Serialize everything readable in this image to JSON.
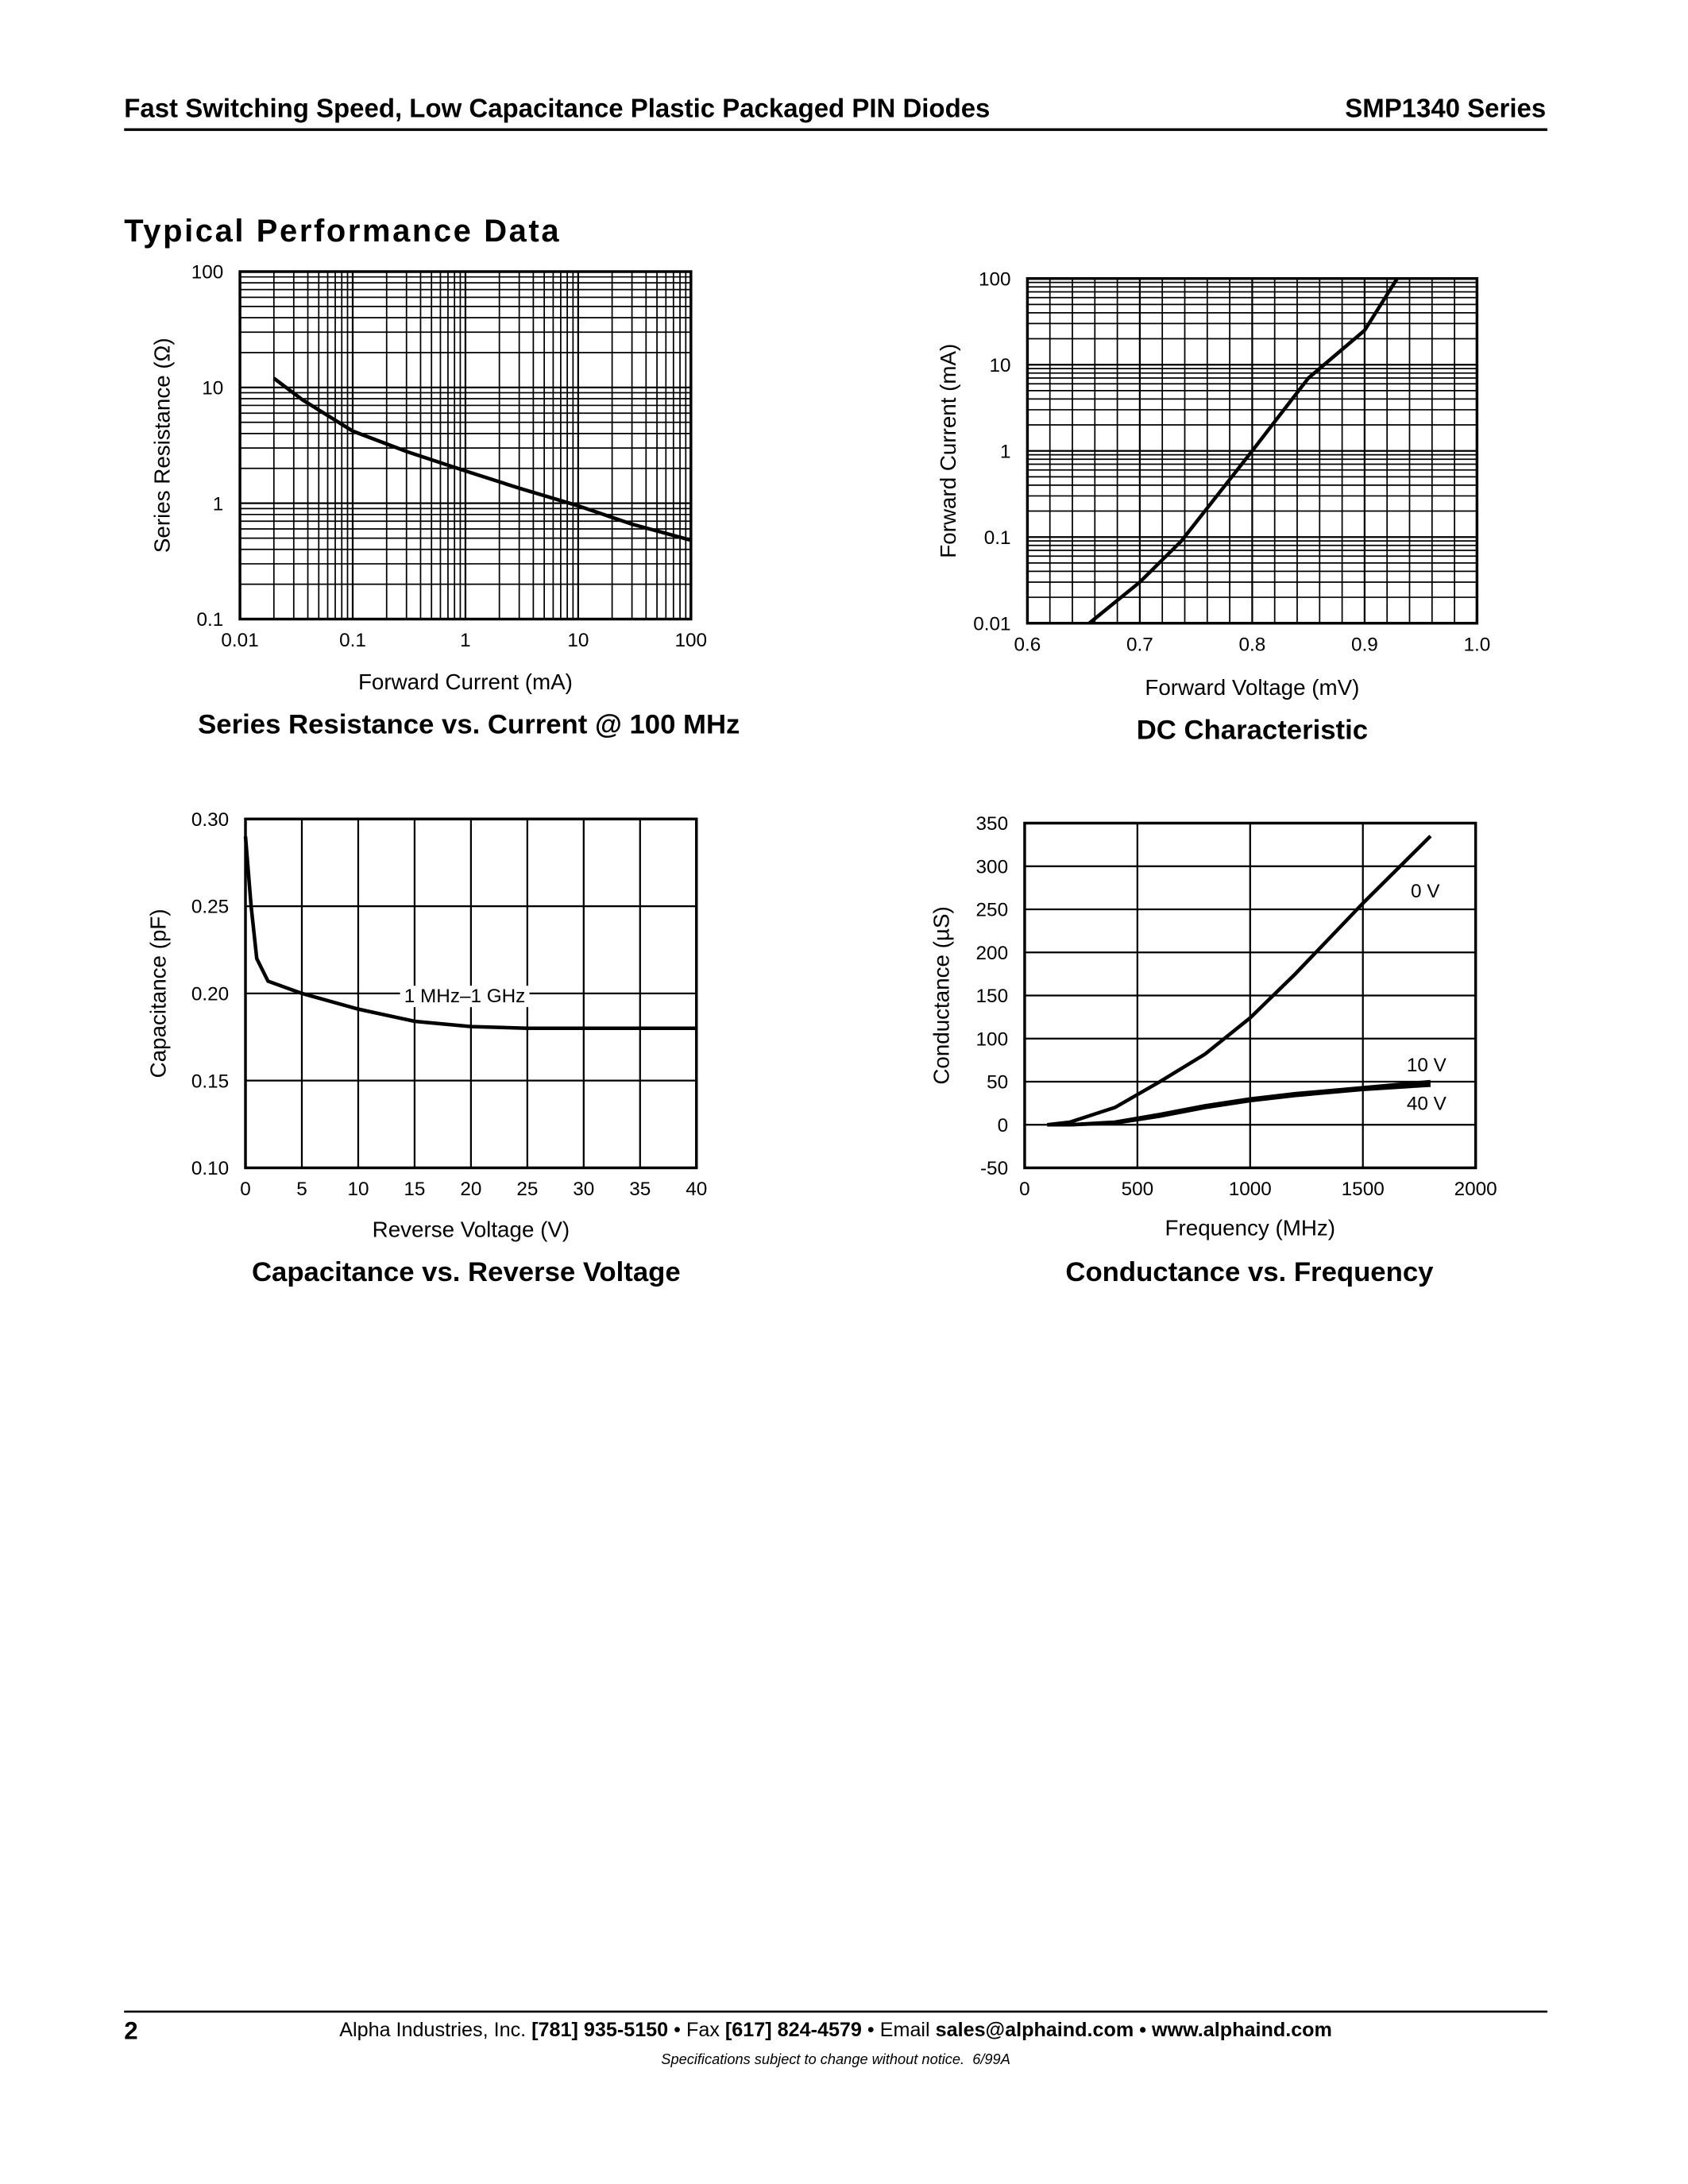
{
  "header": {
    "title": "Fast Switching Speed, Low Capacitance Plastic Packaged PIN Diodes",
    "series": "SMP1340 Series"
  },
  "section_title": "Typical Performance Data",
  "chart_data": [
    {
      "type": "line",
      "title": "Series Resistance vs. Current @ 100 MHz",
      "x_label": "Forward Current (mA)",
      "y_label": "Series Resistance (Ω)",
      "x": [
        0.02,
        0.036,
        0.1,
        0.3,
        1,
        3,
        10,
        30,
        100
      ],
      "values": [
        12,
        7.8,
        4.2,
        2.8,
        1.9,
        1.35,
        0.95,
        0.66,
        0.48
      ],
      "color": "#000000",
      "log_x": true,
      "log_y": true,
      "grid": true,
      "minor_grid": true,
      "xlim": [
        0.01,
        100
      ],
      "xticks": [
        0.01,
        0.1,
        1,
        10,
        100
      ],
      "ylim": [
        0.1,
        100
      ],
      "yticks": [
        0.1,
        1,
        10,
        100
      ]
    },
    {
      "type": "line",
      "title": "DC Characteristic",
      "x_label": "Forward Voltage (mV)",
      "y_label": "Forward Current (mA)",
      "x": [
        0.655,
        0.7,
        0.737,
        0.8,
        0.85,
        0.9,
        0.929
      ],
      "values": [
        0.01,
        0.03,
        0.09,
        1,
        7,
        25,
        100
      ],
      "color": "#000000",
      "log_x": false,
      "log_y": true,
      "grid": true,
      "minor_grid": true,
      "xlim": [
        0.6,
        1
      ],
      "xticks": [
        0.6,
        0.7,
        0.8,
        0.9,
        {
          "value": 1,
          "label": "1.0"
        }
      ],
      "ylim": [
        0.01,
        100
      ],
      "yticks": [
        0.01,
        0.1,
        1,
        10,
        100
      ]
    },
    {
      "type": "line",
      "title": "Capacitance vs. Reverse Voltage",
      "x_label": "Reverse Voltage (V)",
      "y_label": "Capacitance (pF)",
      "annotation": "1 MHz–1 GHz",
      "x": [
        0,
        0.5,
        1,
        2,
        5,
        10,
        15,
        20,
        25,
        30,
        40
      ],
      "values": [
        0.29,
        0.25,
        0.22,
        0.207,
        0.2,
        0.191,
        0.184,
        0.181,
        0.18,
        0.18,
        0.18
      ],
      "color": "#000000",
      "log_x": false,
      "log_y": false,
      "grid": true,
      "minor_grid": false,
      "xlim": [
        0,
        40
      ],
      "xticks": [
        0,
        5,
        10,
        15,
        20,
        25,
        30,
        35,
        40
      ],
      "ylim": [
        0.1,
        0.3
      ],
      "yticks": [
        {
          "value": 0.1,
          "label": "0.10"
        },
        {
          "value": 0.15,
          "label": "0.15"
        },
        {
          "value": 0.2,
          "label": "0.20"
        },
        {
          "value": 0.25,
          "label": "0.25"
        },
        {
          "value": 0.3,
          "label": "0.30"
        }
      ]
    },
    {
      "type": "line",
      "title": "Conductance vs. Frequency",
      "x_label": "Frequency (MHz)",
      "y_label": "Conductance (µS)",
      "x": [
        100,
        200,
        400,
        600,
        800,
        1000,
        1200,
        1500,
        1800
      ],
      "series": [
        {
          "name": "0 V",
          "color": "#000000",
          "values": [
            0,
            3,
            20,
            50,
            82,
            124,
            175,
            257,
            335
          ]
        },
        {
          "name": "10 V",
          "color": "#000000",
          "values": [
            0,
            0,
            3,
            12,
            22,
            30,
            36,
            43,
            50
          ]
        },
        {
          "name": "40 V",
          "color": "#000000",
          "values": [
            0,
            0,
            2,
            10,
            20,
            28,
            34,
            41,
            46
          ]
        }
      ],
      "log_x": false,
      "log_y": false,
      "grid": true,
      "minor_grid": false,
      "xlim": [
        0,
        2000
      ],
      "xticks": [
        0,
        500,
        1000,
        1500,
        2000
      ],
      "ylim": [
        -50,
        350
      ],
      "yticks": [
        -50,
        0,
        50,
        100,
        150,
        200,
        250,
        300,
        350
      ]
    }
  ],
  "footer": {
    "page": "2",
    "contact": [
      "Alpha Industries, Inc. ",
      "[781] 935-5150",
      " • Fax ",
      "[617] 824-4579",
      " • Email ",
      "sales@alphaind.com • www.alphaind.com"
    ],
    "note": "Specifications subject to change without notice.  6/99A"
  }
}
